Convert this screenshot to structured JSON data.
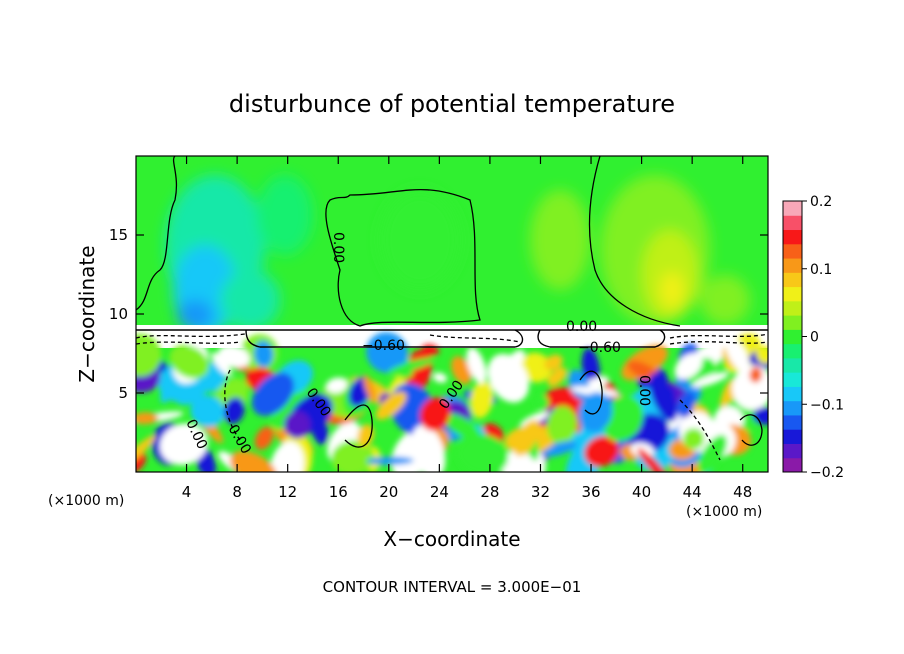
{
  "chart_data": {
    "type": "heatmap",
    "title": "disturbunce of potential temperature",
    "xlabel": "X−coordinate",
    "ylabel": "Z−coordinate",
    "x_unit_label": "(×1000 m)",
    "z_unit_label": "(×1000 m)",
    "xlim": [
      0,
      50
    ],
    "ylim": [
      0,
      20
    ],
    "x_ticks": [
      4,
      8,
      12,
      16,
      20,
      24,
      28,
      32,
      36,
      40,
      44,
      48
    ],
    "y_ticks": [
      5,
      10,
      15
    ],
    "colorbar": {
      "range": [
        -0.2,
        0.2
      ],
      "tick_values": [
        0.2,
        0.1,
        0,
        -0.1,
        -0.2
      ],
      "tick_labels": [
        "0.2",
        "0.1",
        "0",
        "−0.1",
        "−0.2"
      ],
      "colors": [
        "#8a1aa8",
        "#5a18c8",
        "#1818d8",
        "#1858f0",
        "#1898f8",
        "#18c8f8",
        "#18e8d8",
        "#18e8a8",
        "#18f070",
        "#30f030",
        "#80f020",
        "#c0f018",
        "#f0f018",
        "#f8c818",
        "#f89818",
        "#f86018",
        "#f81818",
        "#f85068",
        "#f8a8b8"
      ]
    },
    "contour_labels": [
      "0.00",
      "0.00",
      "0.00",
      "0.00",
      "0.00",
      "−0.60",
      "−0.60",
      "0.00",
      "0.00"
    ],
    "annotation": "CONTOUR INTERVAL = 3.000E−01",
    "regions": {
      "upper_layer": {
        "z_range": [
          9,
          20
        ],
        "dominant_value": 0.0,
        "note": "weak warm anomaly near x=43, z=12; cool anomaly near x=6, z=9"
      },
      "inversion_band": {
        "z_range": [
          7.7,
          9
        ],
        "value_range": [
          -0.9,
          0.0
        ]
      },
      "lower_turbulent_layer": {
        "z_range": [
          0,
          7.7
        ],
        "value_range": [
          -0.3,
          0.3
        ]
      }
    }
  }
}
